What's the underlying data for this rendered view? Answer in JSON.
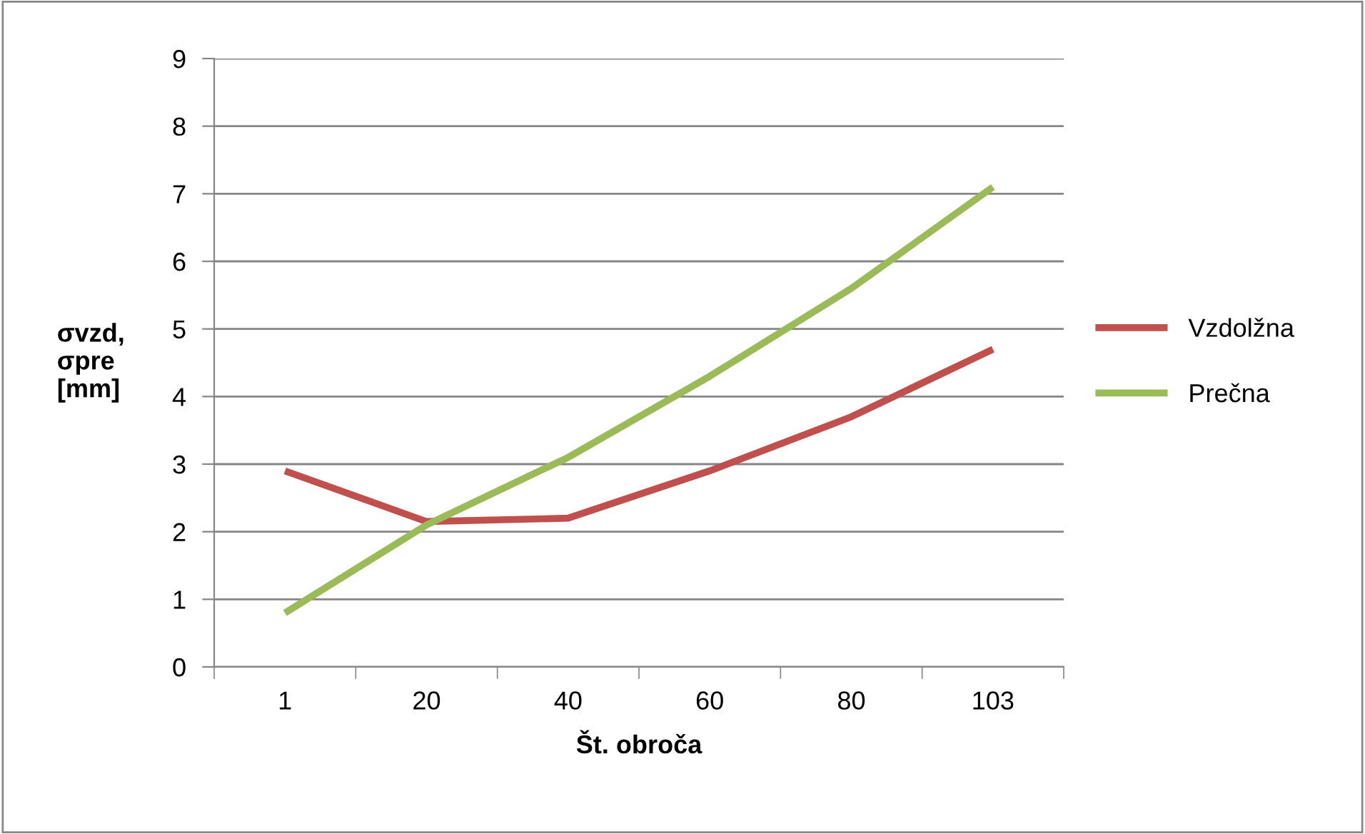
{
  "chart_data": {
    "type": "line",
    "xlabel": "Št. obroča",
    "ylabel": "σvzd,\nσpre\n[mm]",
    "categories": [
      "1",
      "20",
      "40",
      "60",
      "80",
      "103"
    ],
    "series": [
      {
        "name": "Vzdolžna",
        "color": "#c0504d",
        "values": [
          2.9,
          2.15,
          2.2,
          2.9,
          3.7,
          4.7
        ]
      },
      {
        "name": "Prečna",
        "color": "#9bbb59",
        "values": [
          0.8,
          2.1,
          3.1,
          4.3,
          5.6,
          7.1
        ]
      }
    ],
    "ylim": [
      0,
      9
    ],
    "yticks": [
      0,
      1,
      2,
      3,
      4,
      5,
      6,
      7,
      8,
      9
    ],
    "grid": "y",
    "legend": "right",
    "marker": "none",
    "line_style": "solid"
  }
}
